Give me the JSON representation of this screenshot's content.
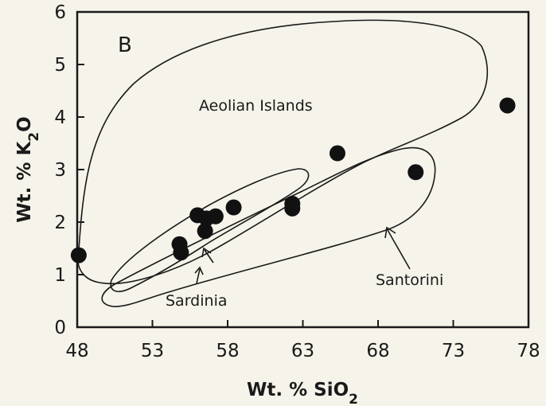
{
  "chart_data": {
    "type": "scatter",
    "panel_label": "B",
    "xlabel": "Wt. % SiO2",
    "ylabel": "Wt. % K2O",
    "xlim": [
      48,
      78
    ],
    "ylim": [
      0,
      6
    ],
    "x_ticks": [
      48,
      53,
      58,
      63,
      68,
      73,
      78
    ],
    "y_ticks": [
      0,
      1,
      2,
      3,
      4,
      5,
      6
    ],
    "grid": false,
    "regions": [
      {
        "label": "Aeolian Islands"
      },
      {
        "label": "Sardinia"
      },
      {
        "label": "Santorini"
      }
    ],
    "points": [
      {
        "x": 48.1,
        "y": 1.37
      },
      {
        "x": 54.8,
        "y": 1.58
      },
      {
        "x": 54.9,
        "y": 1.42
      },
      {
        "x": 56.0,
        "y": 2.13
      },
      {
        "x": 56.6,
        "y": 2.07
      },
      {
        "x": 56.5,
        "y": 1.83
      },
      {
        "x": 57.2,
        "y": 2.11
      },
      {
        "x": 58.4,
        "y": 2.28
      },
      {
        "x": 62.3,
        "y": 2.26
      },
      {
        "x": 62.3,
        "y": 2.35
      },
      {
        "x": 65.3,
        "y": 3.31
      },
      {
        "x": 70.5,
        "y": 2.95
      },
      {
        "x": 76.6,
        "y": 4.22
      }
    ]
  }
}
